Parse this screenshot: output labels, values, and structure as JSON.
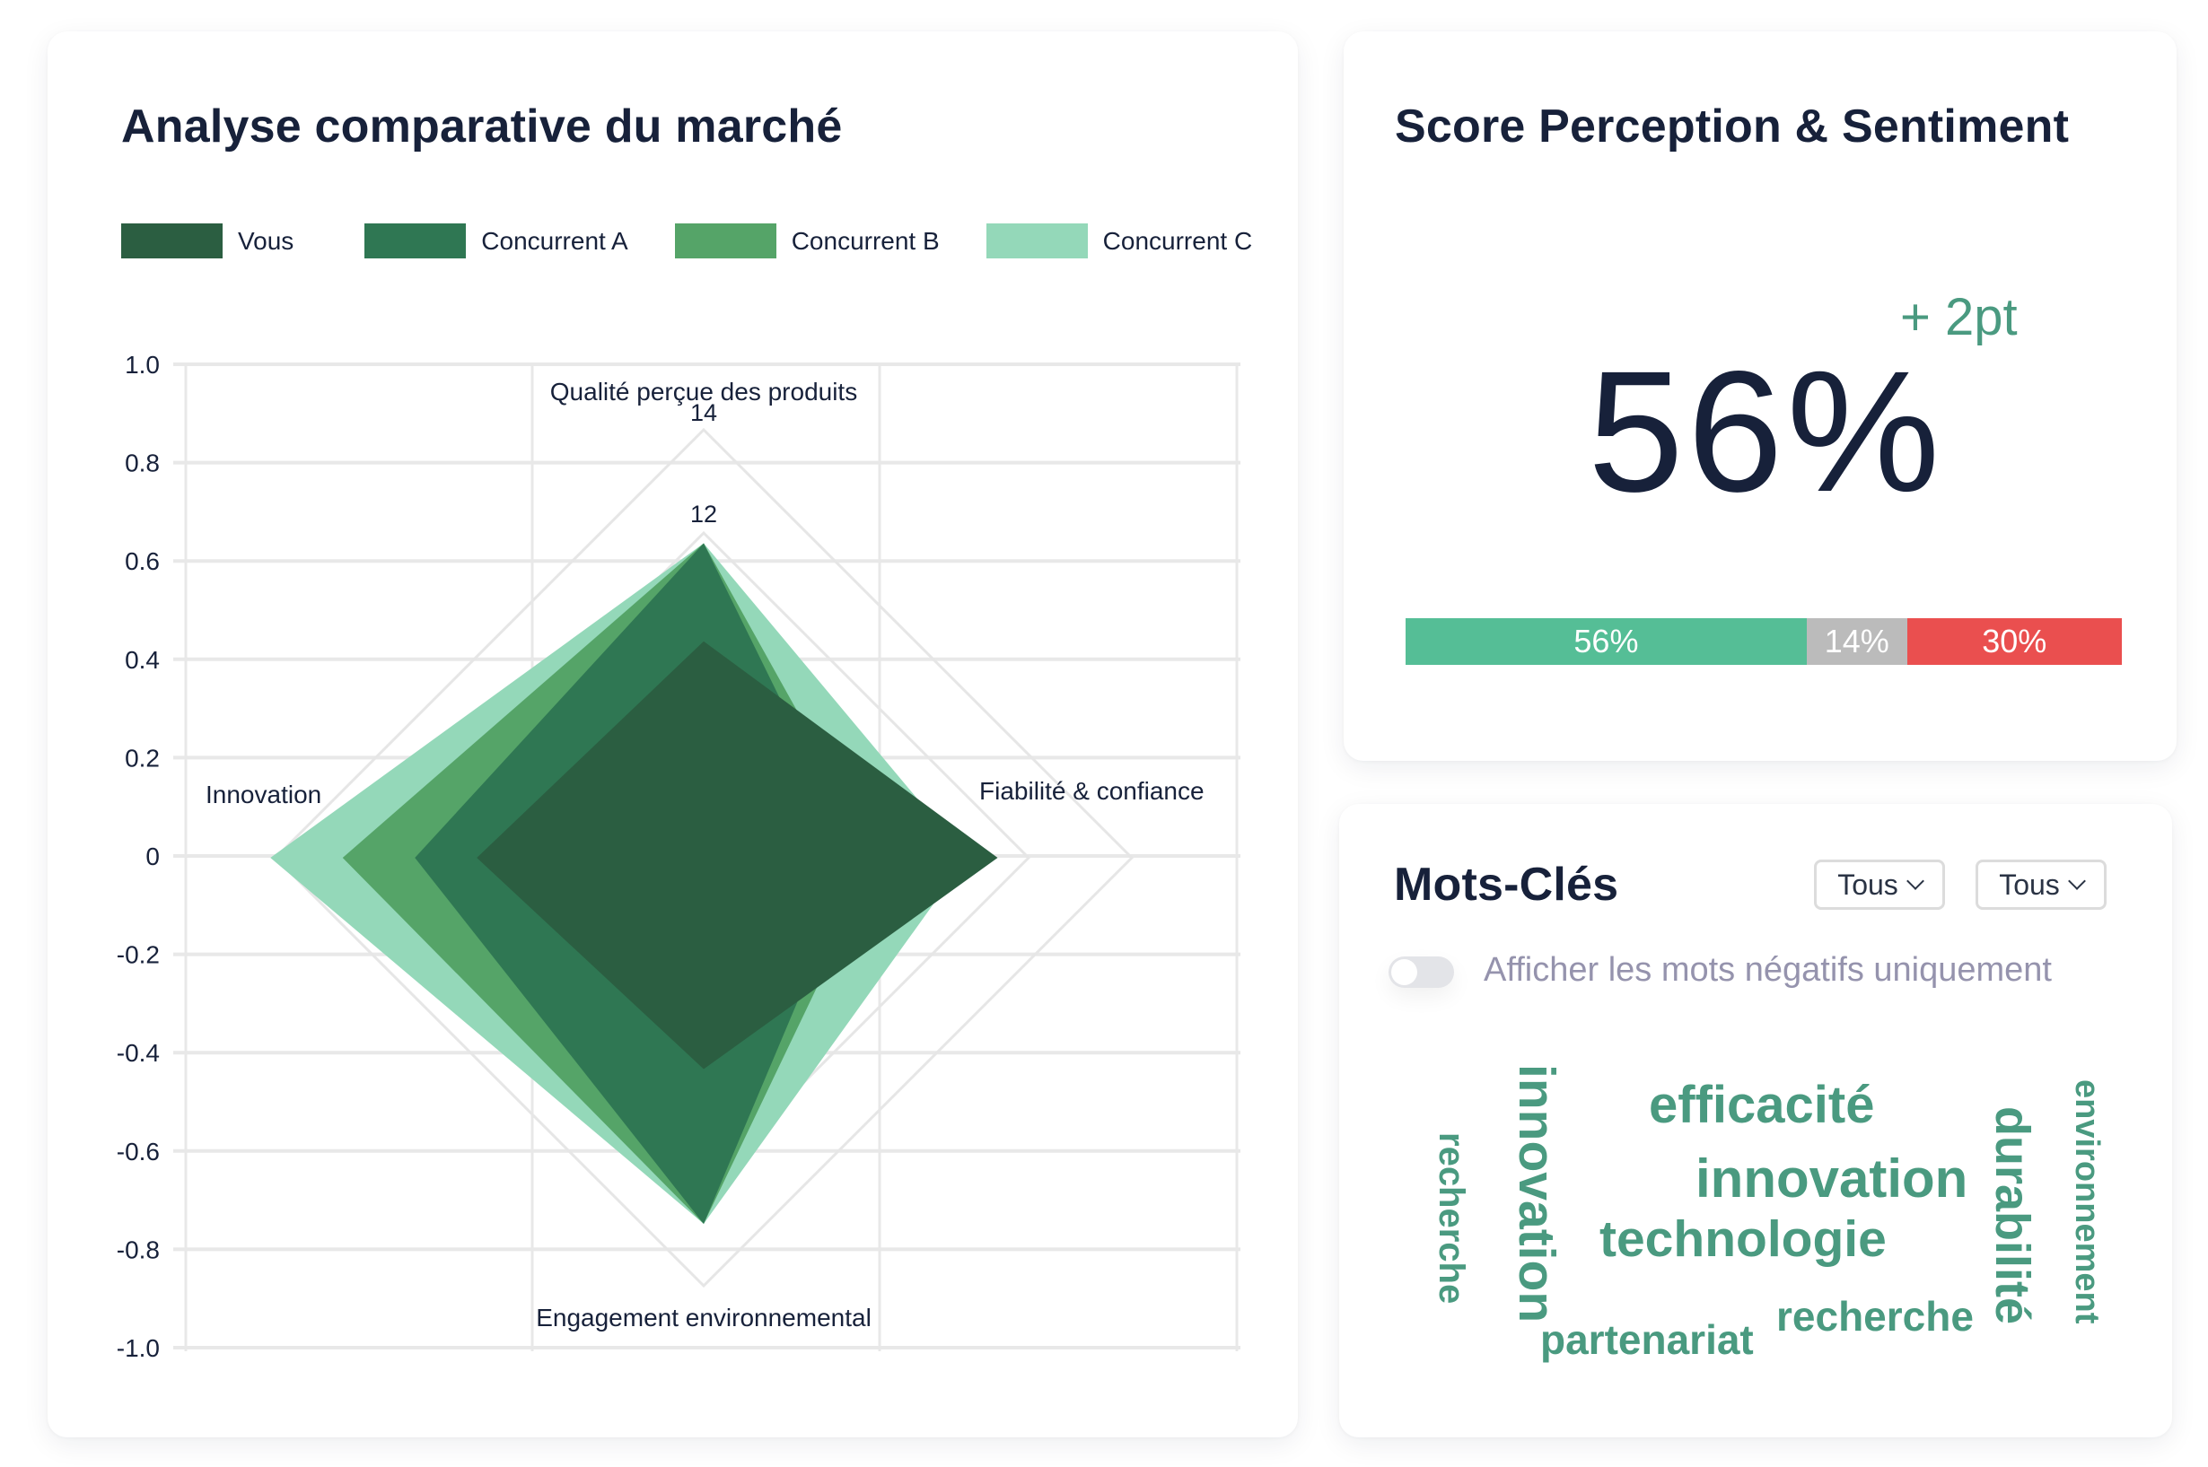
{
  "market": {
    "title": "Analyse comparative du marché",
    "legend": [
      {
        "label": "Vous",
        "color": "#2b5e41"
      },
      {
        "label": "Concurrent A",
        "color": "#2f7753"
      },
      {
        "label": "Concurrent B",
        "color": "#55a468"
      },
      {
        "label": "Concurrent C",
        "color": "#94d8b9"
      }
    ]
  },
  "score": {
    "title": "Score Perception & Sentiment",
    "value": "56%",
    "delta": "+ 2pt",
    "delta_color": "#4a9a80",
    "bar": [
      {
        "label": "56%",
        "value": 56,
        "color": "#55be96"
      },
      {
        "label": "14%",
        "value": 14,
        "color": "#bbbbbb"
      },
      {
        "label": "30%",
        "value": 30,
        "color": "#ea4f4f"
      }
    ]
  },
  "keywords": {
    "title": "Mots-Clés",
    "filter1": "Tous",
    "filter2": "Tous",
    "toggle_label": "Afficher les mots négatifs uniquement",
    "toggle_on": false,
    "word_color": "#4a9a80",
    "words": [
      {
        "text": "recherche",
        "orientation": "vertical"
      },
      {
        "text": "innovation",
        "orientation": "vertical"
      },
      {
        "text": "efficacité",
        "orientation": "horizontal"
      },
      {
        "text": "innovation",
        "orientation": "horizontal"
      },
      {
        "text": "technologie",
        "orientation": "horizontal"
      },
      {
        "text": "recherche",
        "orientation": "horizontal"
      },
      {
        "text": "partenariat",
        "orientation": "horizontal"
      },
      {
        "text": "durabilité",
        "orientation": "vertical"
      },
      {
        "text": "environnement",
        "orientation": "vertical"
      }
    ]
  },
  "chart_data": {
    "type": "radar",
    "title": "Analyse comparative du marché",
    "indicators": [
      "Qualité perçue des produits",
      "Fiabilité & confiance",
      "Engagement environnemental",
      "Innovation"
    ],
    "ring_labels": [
      "12",
      "14"
    ],
    "series": [
      {
        "name": "Vous",
        "values": [
          9.9,
          11.4,
          9.8,
          10.1
        ],
        "color": "#2b5e41"
      },
      {
        "name": "Concurrent A",
        "values": [
          11.8,
          8.7,
          12.8,
          11.3
        ],
        "color": "#2f7753"
      },
      {
        "name": "Concurrent B",
        "values": [
          11.8,
          9.1,
          12.8,
          12.7
        ],
        "color": "#55a468"
      },
      {
        "name": "Concurrent C",
        "values": [
          11.8,
          10.8,
          12.8,
          14.1
        ],
        "color": "#94d8b9"
      }
    ],
    "background_axis": {
      "ylim": [
        -1.0,
        1.0
      ],
      "yticks": [
        "1.0",
        "0.8",
        "0.6",
        "0.4",
        "0.2",
        "0",
        "-0.2",
        "-0.4",
        "-0.6",
        "-0.8",
        "-1.0"
      ],
      "grid": true
    },
    "legend_position": "top"
  }
}
